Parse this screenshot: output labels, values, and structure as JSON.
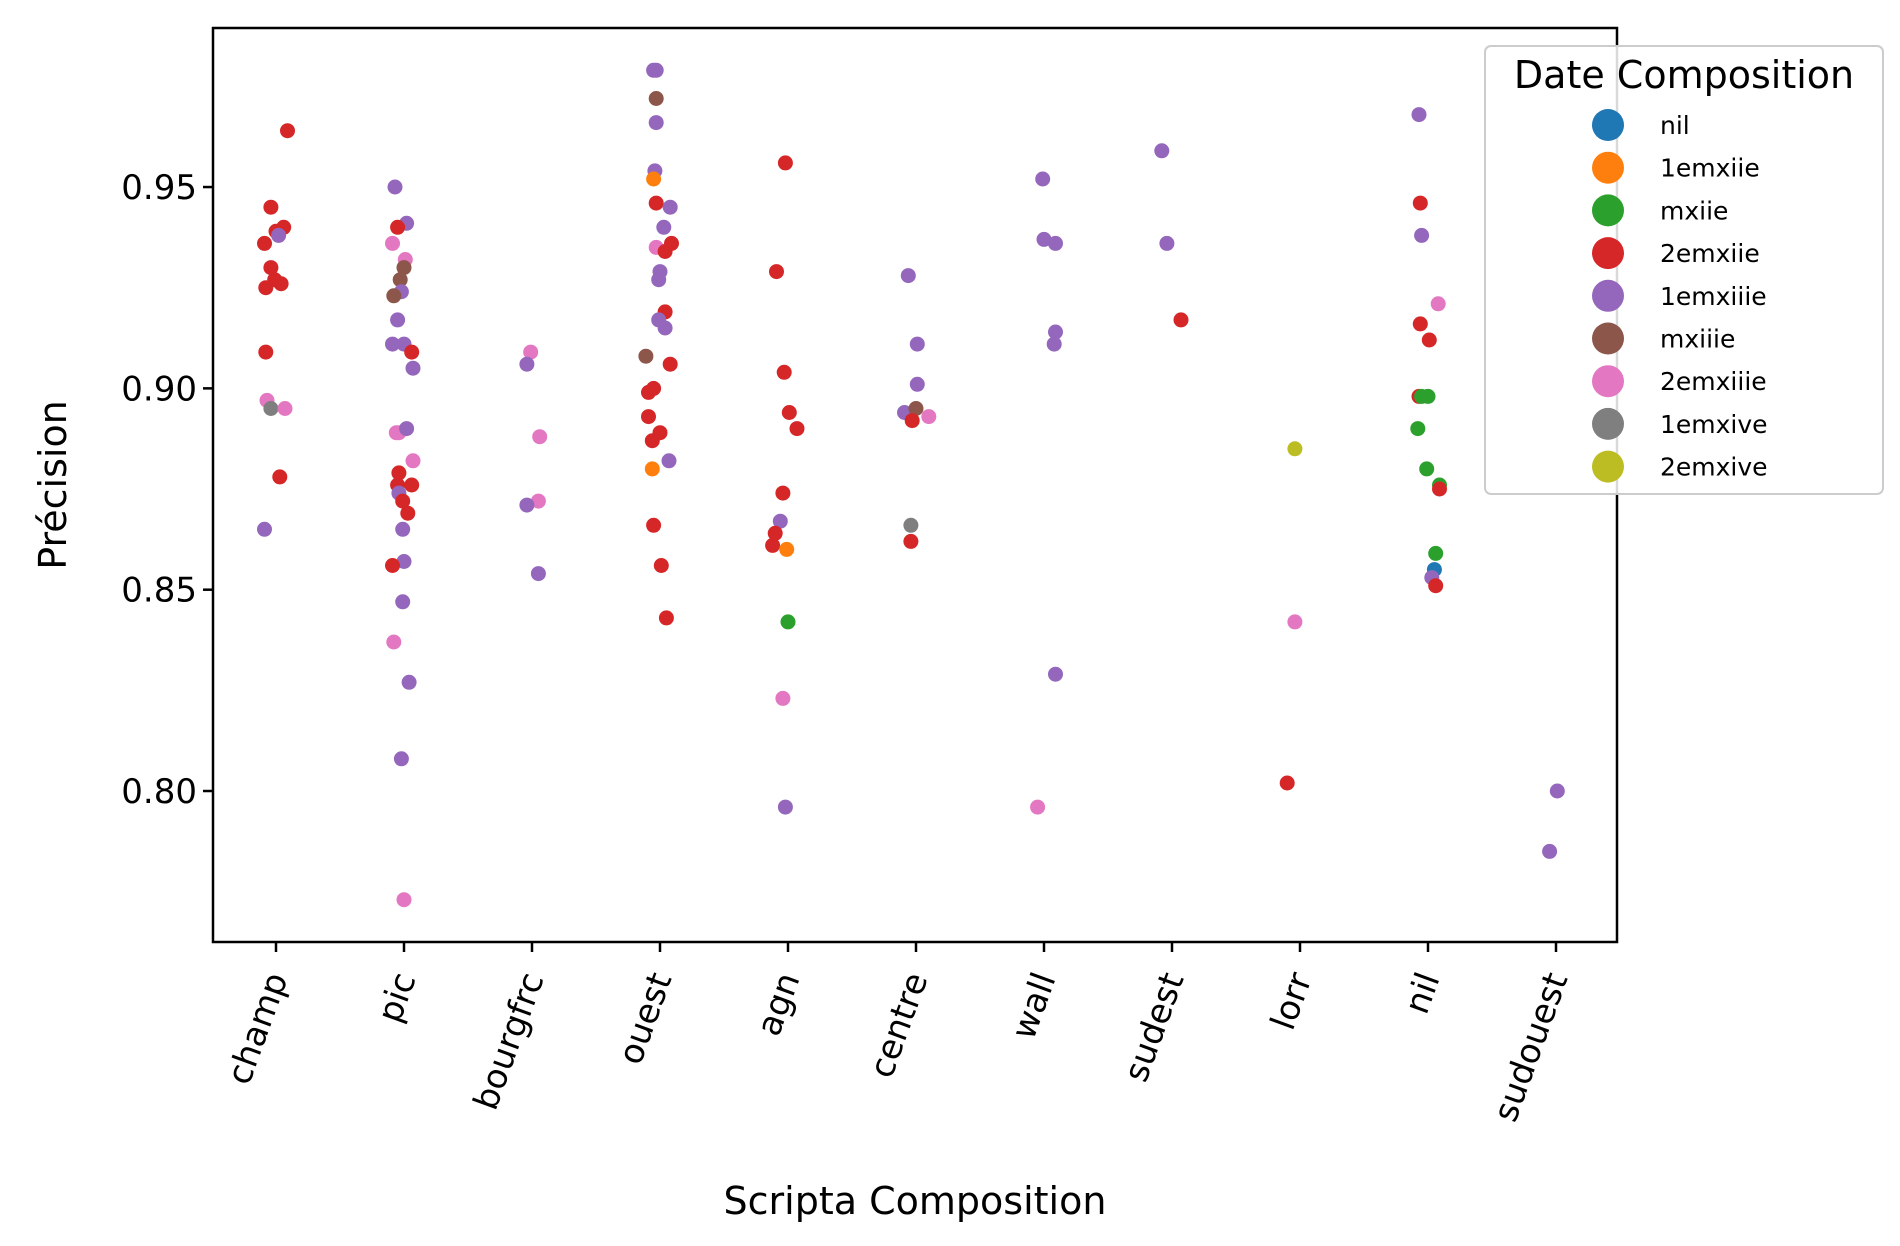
{
  "chart_data": {
    "type": "scatter",
    "title": "",
    "xlabel": "Scripta Composition",
    "ylabel": "Précision",
    "ylim": [
      0.7625,
      0.9895
    ],
    "yticks": [
      0.8,
      0.85,
      0.9,
      0.95
    ],
    "ytick_labels": [
      "0.80",
      "0.85",
      "0.90",
      "0.95"
    ],
    "categories": [
      "champ",
      "pic",
      "bourgfrc",
      "ouest",
      "agn",
      "centre",
      "wall",
      "sudest",
      "lorr",
      "nil",
      "sudouest"
    ],
    "grid": false,
    "legend": {
      "title": "Date Composition",
      "position": "top-right",
      "entries": [
        "nil",
        "1emxiie",
        "mxiie",
        "2emxiie",
        "1emxiiie",
        "mxiiie",
        "2emxiiie",
        "1emxive",
        "2emxive"
      ]
    },
    "colors": {
      "nil": "#1f77b4",
      "1emxiie": "#ff7f0e",
      "mxiie": "#2ca02c",
      "2emxiie": "#d62728",
      "1emxiiie": "#9467bd",
      "mxiiie": "#8c564b",
      "2emxiiie": "#e377c2",
      "1emxive": "#7f7f7f",
      "2emxive": "#bcbd22"
    },
    "points": [
      {
        "category": "champ",
        "jitter": 0.09,
        "y": 0.964,
        "series": "2emxiie"
      },
      {
        "category": "champ",
        "jitter": -0.04,
        "y": 0.945,
        "series": "2emxiie"
      },
      {
        "category": "champ",
        "jitter": 0.06,
        "y": 0.94,
        "series": "2emxiie"
      },
      {
        "category": "champ",
        "jitter": 0.0,
        "y": 0.939,
        "series": "2emxiie"
      },
      {
        "category": "champ",
        "jitter": 0.02,
        "y": 0.938,
        "series": "1emxiiie"
      },
      {
        "category": "champ",
        "jitter": -0.09,
        "y": 0.936,
        "series": "2emxiie"
      },
      {
        "category": "champ",
        "jitter": -0.04,
        "y": 0.93,
        "series": "2emxiie"
      },
      {
        "category": "champ",
        "jitter": -0.01,
        "y": 0.927,
        "series": "2emxiie"
      },
      {
        "category": "champ",
        "jitter": 0.04,
        "y": 0.926,
        "series": "2emxiie"
      },
      {
        "category": "champ",
        "jitter": -0.08,
        "y": 0.925,
        "series": "2emxiie"
      },
      {
        "category": "champ",
        "jitter": -0.08,
        "y": 0.909,
        "series": "2emxiie"
      },
      {
        "category": "champ",
        "jitter": -0.07,
        "y": 0.897,
        "series": "2emxiiie"
      },
      {
        "category": "champ",
        "jitter": -0.04,
        "y": 0.895,
        "series": "1emxive"
      },
      {
        "category": "champ",
        "jitter": 0.07,
        "y": 0.895,
        "series": "2emxiiie"
      },
      {
        "category": "champ",
        "jitter": 0.03,
        "y": 0.878,
        "series": "2emxiie"
      },
      {
        "category": "champ",
        "jitter": -0.09,
        "y": 0.865,
        "series": "1emxiiie"
      },
      {
        "category": "pic",
        "jitter": -0.07,
        "y": 0.95,
        "series": "1emxiiie"
      },
      {
        "category": "pic",
        "jitter": 0.02,
        "y": 0.941,
        "series": "1emxiiie"
      },
      {
        "category": "pic",
        "jitter": -0.05,
        "y": 0.94,
        "series": "2emxiie"
      },
      {
        "category": "pic",
        "jitter": -0.09,
        "y": 0.936,
        "series": "2emxiiie"
      },
      {
        "category": "pic",
        "jitter": 0.01,
        "y": 0.932,
        "series": "2emxiiie"
      },
      {
        "category": "pic",
        "jitter": 0.0,
        "y": 0.93,
        "series": "mxiiie"
      },
      {
        "category": "pic",
        "jitter": -0.03,
        "y": 0.927,
        "series": "mxiiie"
      },
      {
        "category": "pic",
        "jitter": -0.02,
        "y": 0.924,
        "series": "1emxiiie"
      },
      {
        "category": "pic",
        "jitter": -0.08,
        "y": 0.923,
        "series": "mxiiie"
      },
      {
        "category": "pic",
        "jitter": -0.05,
        "y": 0.917,
        "series": "1emxiiie"
      },
      {
        "category": "pic",
        "jitter": -0.09,
        "y": 0.911,
        "series": "1emxiiie"
      },
      {
        "category": "pic",
        "jitter": 0.0,
        "y": 0.911,
        "series": "1emxiiie"
      },
      {
        "category": "pic",
        "jitter": 0.06,
        "y": 0.909,
        "series": "2emxiie"
      },
      {
        "category": "pic",
        "jitter": 0.07,
        "y": 0.905,
        "series": "1emxiiie"
      },
      {
        "category": "pic",
        "jitter": -0.06,
        "y": 0.889,
        "series": "2emxiiie"
      },
      {
        "category": "pic",
        "jitter": -0.04,
        "y": 0.889,
        "series": "2emxiiie"
      },
      {
        "category": "pic",
        "jitter": 0.02,
        "y": 0.89,
        "series": "1emxiiie"
      },
      {
        "category": "pic",
        "jitter": 0.07,
        "y": 0.882,
        "series": "2emxiiie"
      },
      {
        "category": "pic",
        "jitter": -0.04,
        "y": 0.879,
        "series": "2emxiie"
      },
      {
        "category": "pic",
        "jitter": -0.05,
        "y": 0.876,
        "series": "2emxiie"
      },
      {
        "category": "pic",
        "jitter": 0.06,
        "y": 0.876,
        "series": "2emxiie"
      },
      {
        "category": "pic",
        "jitter": -0.04,
        "y": 0.874,
        "series": "1emxiiie"
      },
      {
        "category": "pic",
        "jitter": -0.01,
        "y": 0.872,
        "series": "2emxiie"
      },
      {
        "category": "pic",
        "jitter": 0.03,
        "y": 0.869,
        "series": "2emxiie"
      },
      {
        "category": "pic",
        "jitter": -0.01,
        "y": 0.865,
        "series": "1emxiiie"
      },
      {
        "category": "pic",
        "jitter": 0.0,
        "y": 0.857,
        "series": "1emxiiie"
      },
      {
        "category": "pic",
        "jitter": -0.09,
        "y": 0.856,
        "series": "2emxiie"
      },
      {
        "category": "pic",
        "jitter": -0.01,
        "y": 0.847,
        "series": "1emxiiie"
      },
      {
        "category": "pic",
        "jitter": -0.08,
        "y": 0.837,
        "series": "2emxiiie"
      },
      {
        "category": "pic",
        "jitter": 0.04,
        "y": 0.827,
        "series": "1emxiiie"
      },
      {
        "category": "pic",
        "jitter": -0.02,
        "y": 0.808,
        "series": "1emxiiie"
      },
      {
        "category": "pic",
        "jitter": 0.0,
        "y": 0.773,
        "series": "2emxiiie"
      },
      {
        "category": "bourgfrc",
        "jitter": -0.01,
        "y": 0.909,
        "series": "2emxiiie"
      },
      {
        "category": "bourgfrc",
        "jitter": -0.04,
        "y": 0.906,
        "series": "1emxiiie"
      },
      {
        "category": "bourgfrc",
        "jitter": 0.06,
        "y": 0.888,
        "series": "2emxiiie"
      },
      {
        "category": "bourgfrc",
        "jitter": 0.05,
        "y": 0.872,
        "series": "2emxiiie"
      },
      {
        "category": "bourgfrc",
        "jitter": -0.04,
        "y": 0.871,
        "series": "1emxiiie"
      },
      {
        "category": "bourgfrc",
        "jitter": 0.05,
        "y": 0.854,
        "series": "1emxiiie"
      },
      {
        "category": "ouest",
        "jitter": -0.05,
        "y": 0.979,
        "series": "1emxiiie"
      },
      {
        "category": "ouest",
        "jitter": -0.03,
        "y": 0.979,
        "series": "1emxiiie"
      },
      {
        "category": "ouest",
        "jitter": -0.03,
        "y": 0.972,
        "series": "mxiiie"
      },
      {
        "category": "ouest",
        "jitter": -0.03,
        "y": 0.966,
        "series": "1emxiiie"
      },
      {
        "category": "ouest",
        "jitter": -0.04,
        "y": 0.954,
        "series": "1emxiiie"
      },
      {
        "category": "ouest",
        "jitter": -0.05,
        "y": 0.952,
        "series": "1emxiie"
      },
      {
        "category": "ouest",
        "jitter": -0.03,
        "y": 0.946,
        "series": "2emxiie"
      },
      {
        "category": "ouest",
        "jitter": 0.08,
        "y": 0.945,
        "series": "1emxiiie"
      },
      {
        "category": "ouest",
        "jitter": 0.03,
        "y": 0.94,
        "series": "1emxiiie"
      },
      {
        "category": "ouest",
        "jitter": 0.09,
        "y": 0.936,
        "series": "2emxiie"
      },
      {
        "category": "ouest",
        "jitter": -0.03,
        "y": 0.935,
        "series": "2emxiiie"
      },
      {
        "category": "ouest",
        "jitter": 0.04,
        "y": 0.934,
        "series": "2emxiie"
      },
      {
        "category": "ouest",
        "jitter": 0.0,
        "y": 0.929,
        "series": "1emxiiie"
      },
      {
        "category": "ouest",
        "jitter": -0.01,
        "y": 0.927,
        "series": "1emxiiie"
      },
      {
        "category": "ouest",
        "jitter": 0.04,
        "y": 0.919,
        "series": "2emxiie"
      },
      {
        "category": "ouest",
        "jitter": -0.01,
        "y": 0.917,
        "series": "1emxiiie"
      },
      {
        "category": "ouest",
        "jitter": 0.04,
        "y": 0.915,
        "series": "1emxiiie"
      },
      {
        "category": "ouest",
        "jitter": -0.11,
        "y": 0.908,
        "series": "mxiiie"
      },
      {
        "category": "ouest",
        "jitter": 0.08,
        "y": 0.906,
        "series": "2emxiie"
      },
      {
        "category": "ouest",
        "jitter": -0.05,
        "y": 0.9,
        "series": "2emxiie"
      },
      {
        "category": "ouest",
        "jitter": -0.09,
        "y": 0.899,
        "series": "2emxiie"
      },
      {
        "category": "ouest",
        "jitter": -0.09,
        "y": 0.893,
        "series": "2emxiie"
      },
      {
        "category": "ouest",
        "jitter": 0.0,
        "y": 0.889,
        "series": "2emxiie"
      },
      {
        "category": "ouest",
        "jitter": -0.06,
        "y": 0.887,
        "series": "2emxiie"
      },
      {
        "category": "ouest",
        "jitter": 0.07,
        "y": 0.882,
        "series": "1emxiiie"
      },
      {
        "category": "ouest",
        "jitter": -0.06,
        "y": 0.88,
        "series": "1emxiie"
      },
      {
        "category": "ouest",
        "jitter": -0.05,
        "y": 0.866,
        "series": "2emxiie"
      },
      {
        "category": "ouest",
        "jitter": 0.01,
        "y": 0.856,
        "series": "2emxiie"
      },
      {
        "category": "ouest",
        "jitter": 0.05,
        "y": 0.843,
        "series": "2emxiie"
      },
      {
        "category": "agn",
        "jitter": -0.02,
        "y": 0.956,
        "series": "2emxiie"
      },
      {
        "category": "agn",
        "jitter": -0.09,
        "y": 0.929,
        "series": "2emxiie"
      },
      {
        "category": "agn",
        "jitter": -0.03,
        "y": 0.904,
        "series": "2emxiie"
      },
      {
        "category": "agn",
        "jitter": 0.01,
        "y": 0.894,
        "series": "2emxiie"
      },
      {
        "category": "agn",
        "jitter": 0.07,
        "y": 0.89,
        "series": "2emxiie"
      },
      {
        "category": "agn",
        "jitter": -0.04,
        "y": 0.874,
        "series": "2emxiie"
      },
      {
        "category": "agn",
        "jitter": -0.06,
        "y": 0.867,
        "series": "1emxiiie"
      },
      {
        "category": "agn",
        "jitter": -0.1,
        "y": 0.864,
        "series": "2emxiie"
      },
      {
        "category": "agn",
        "jitter": -0.12,
        "y": 0.861,
        "series": "2emxiie"
      },
      {
        "category": "agn",
        "jitter": -0.01,
        "y": 0.86,
        "series": "1emxiie"
      },
      {
        "category": "agn",
        "jitter": 0.0,
        "y": 0.842,
        "series": "mxiie"
      },
      {
        "category": "agn",
        "jitter": -0.04,
        "y": 0.823,
        "series": "2emxiiie"
      },
      {
        "category": "agn",
        "jitter": -0.02,
        "y": 0.796,
        "series": "1emxiiie"
      },
      {
        "category": "centre",
        "jitter": -0.06,
        "y": 0.928,
        "series": "1emxiiie"
      },
      {
        "category": "centre",
        "jitter": 0.01,
        "y": 0.911,
        "series": "1emxiiie"
      },
      {
        "category": "centre",
        "jitter": 0.01,
        "y": 0.901,
        "series": "1emxiiie"
      },
      {
        "category": "centre",
        "jitter": -0.09,
        "y": 0.894,
        "series": "1emxiiie"
      },
      {
        "category": "centre",
        "jitter": 0.0,
        "y": 0.895,
        "series": "mxiiie"
      },
      {
        "category": "centre",
        "jitter": -0.03,
        "y": 0.892,
        "series": "2emxiie"
      },
      {
        "category": "centre",
        "jitter": 0.1,
        "y": 0.893,
        "series": "2emxiiie"
      },
      {
        "category": "centre",
        "jitter": -0.04,
        "y": 0.866,
        "series": "1emxive"
      },
      {
        "category": "centre",
        "jitter": -0.04,
        "y": 0.862,
        "series": "2emxiie"
      },
      {
        "category": "wall",
        "jitter": -0.01,
        "y": 0.952,
        "series": "1emxiiie"
      },
      {
        "category": "wall",
        "jitter": 0.0,
        "y": 0.937,
        "series": "1emxiiie"
      },
      {
        "category": "wall",
        "jitter": 0.09,
        "y": 0.936,
        "series": "1emxiiie"
      },
      {
        "category": "wall",
        "jitter": 0.09,
        "y": 0.914,
        "series": "1emxiiie"
      },
      {
        "category": "wall",
        "jitter": 0.08,
        "y": 0.911,
        "series": "1emxiiie"
      },
      {
        "category": "wall",
        "jitter": 0.09,
        "y": 0.829,
        "series": "1emxiiie"
      },
      {
        "category": "wall",
        "jitter": -0.05,
        "y": 0.796,
        "series": "2emxiiie"
      },
      {
        "category": "sudest",
        "jitter": -0.08,
        "y": 0.959,
        "series": "1emxiiie"
      },
      {
        "category": "sudest",
        "jitter": -0.04,
        "y": 0.936,
        "series": "1emxiiie"
      },
      {
        "category": "sudest",
        "jitter": 0.07,
        "y": 0.917,
        "series": "2emxiie"
      },
      {
        "category": "lorr",
        "jitter": -0.04,
        "y": 0.885,
        "series": "2emxive"
      },
      {
        "category": "lorr",
        "jitter": -0.04,
        "y": 0.842,
        "series": "2emxiiie"
      },
      {
        "category": "lorr",
        "jitter": -0.1,
        "y": 0.802,
        "series": "2emxiie"
      },
      {
        "category": "nil",
        "jitter": -0.07,
        "y": 0.968,
        "series": "1emxiiie"
      },
      {
        "category": "nil",
        "jitter": -0.06,
        "y": 0.946,
        "series": "2emxiie"
      },
      {
        "category": "nil",
        "jitter": -0.05,
        "y": 0.938,
        "series": "1emxiiie"
      },
      {
        "category": "nil",
        "jitter": 0.08,
        "y": 0.921,
        "series": "2emxiiie"
      },
      {
        "category": "nil",
        "jitter": -0.06,
        "y": 0.916,
        "series": "2emxiie"
      },
      {
        "category": "nil",
        "jitter": 0.01,
        "y": 0.912,
        "series": "2emxiie"
      },
      {
        "category": "nil",
        "jitter": -0.07,
        "y": 0.898,
        "series": "2emxiie"
      },
      {
        "category": "nil",
        "jitter": -0.05,
        "y": 0.898,
        "series": "mxiie"
      },
      {
        "category": "nil",
        "jitter": 0.0,
        "y": 0.898,
        "series": "mxiie"
      },
      {
        "category": "nil",
        "jitter": -0.08,
        "y": 0.89,
        "series": "mxiie"
      },
      {
        "category": "nil",
        "jitter": -0.01,
        "y": 0.88,
        "series": "mxiie"
      },
      {
        "category": "nil",
        "jitter": 0.09,
        "y": 0.876,
        "series": "mxiie"
      },
      {
        "category": "nil",
        "jitter": 0.09,
        "y": 0.875,
        "series": "2emxiie"
      },
      {
        "category": "nil",
        "jitter": 0.06,
        "y": 0.859,
        "series": "mxiie"
      },
      {
        "category": "nil",
        "jitter": 0.05,
        "y": 0.855,
        "series": "nil"
      },
      {
        "category": "nil",
        "jitter": 0.03,
        "y": 0.853,
        "series": "1emxiiie"
      },
      {
        "category": "nil",
        "jitter": 0.06,
        "y": 0.851,
        "series": "2emxiie"
      },
      {
        "category": "sudouest",
        "jitter": 0.01,
        "y": 0.8,
        "series": "1emxiiie"
      },
      {
        "category": "sudouest",
        "jitter": -0.05,
        "y": 0.785,
        "series": "1emxiiie"
      }
    ]
  }
}
